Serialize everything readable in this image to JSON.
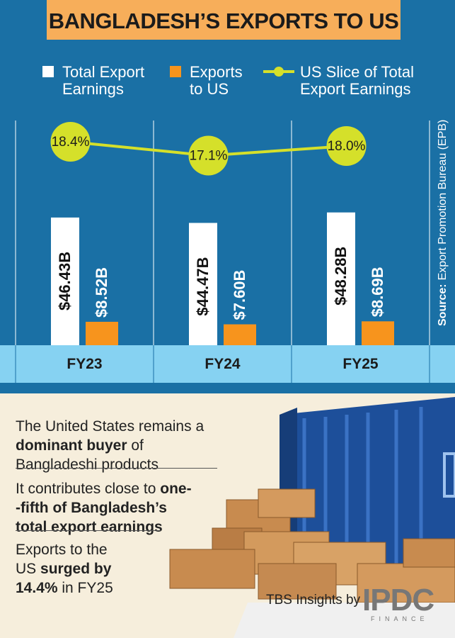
{
  "title": "BANGLADESH’S EXPORTS TO US",
  "chart_data": {
    "type": "bar",
    "categories": [
      "FY23",
      "FY24",
      "FY25"
    ],
    "series": [
      {
        "name": "Total Export Earnings",
        "color": "#ffffff",
        "values": [
          46.43,
          44.47,
          48.28
        ],
        "value_labels": [
          "$46.43B",
          "$44.47B",
          "$48.28B"
        ]
      },
      {
        "name": "Exports to US",
        "color": "#f7941d",
        "values": [
          8.52,
          7.6,
          8.69
        ],
        "value_labels": [
          "$8.52B",
          "$7.60B",
          "$8.69B"
        ]
      },
      {
        "name": "US Slice of Total Export Earnings",
        "type": "line",
        "color": "#d5e02a",
        "values": [
          18.4,
          17.1,
          18.0
        ],
        "value_labels": [
          "18.4%",
          "17.1%",
          "18.0%"
        ]
      }
    ],
    "source_label": "Source:",
    "source": "Export Promotion Bureau (EPB)"
  },
  "notes": [
    [
      {
        "text": "The United States remains a "
      },
      {
        "text": "dominant buyer",
        "bold": true
      },
      {
        "text": " of Bangladeshi products"
      }
    ],
    [
      {
        "text": "It contributes close to "
      },
      {
        "text": "one--fifth of Bangladesh’s total export earnings",
        "bold": true
      }
    ],
    [
      {
        "text": "Exports to the US "
      },
      {
        "text": "surged by 14.4%",
        "bold": true
      },
      {
        "text": " in FY25"
      }
    ]
  ],
  "footer": {
    "credit": "TBS Insights by",
    "logo": "IPDC",
    "logo_sub": "FINANCE"
  }
}
